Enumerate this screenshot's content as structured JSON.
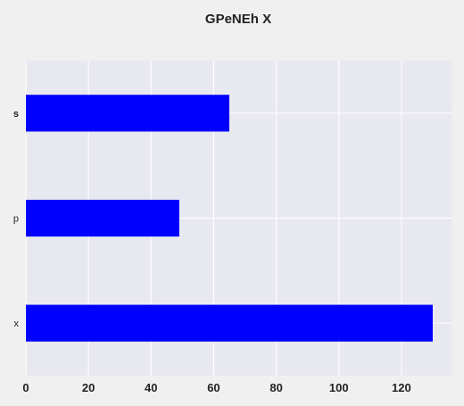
{
  "chart_data": {
    "type": "bar",
    "orientation": "horizontal",
    "title": "GPeNEh X",
    "categories": [
      "s",
      "p",
      "x"
    ],
    "values": [
      65,
      49,
      130
    ],
    "xlim": [
      0,
      136
    ],
    "xticks": [
      0,
      20,
      40,
      60,
      80,
      100,
      120
    ],
    "xlabel": "",
    "ylabel": "",
    "grid": true,
    "legend": "none",
    "bar_color": "#0000ff",
    "background_color": "#e8e8f0",
    "figure_color": "#f0f0f0"
  }
}
